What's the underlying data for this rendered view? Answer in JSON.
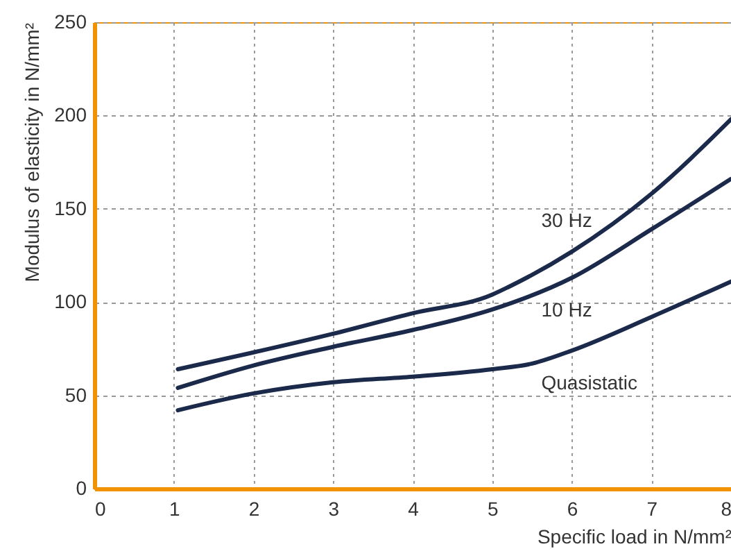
{
  "chart_data": {
    "type": "line",
    "xlabel": "Specific load in N/mm²",
    "ylabel": "Modulus of elasticity in N/mm²",
    "xlim": [
      0,
      8
    ],
    "xticks": [
      0,
      1,
      2,
      3,
      4,
      5,
      6,
      7,
      8
    ],
    "ylim": [
      0,
      250
    ],
    "yticks": [
      0,
      50,
      100,
      150,
      200,
      250
    ],
    "grid": true,
    "series": [
      {
        "name": "30 Hz",
        "color": "#1b2a4a",
        "x": [
          1.05,
          2,
          3,
          4,
          5,
          5.2,
          6,
          7,
          8
        ],
        "values": [
          64,
          73,
          83,
          94,
          104,
          108,
          127,
          158,
          198
        ]
      },
      {
        "name": "10 Hz",
        "color": "#1b2a4a",
        "x": [
          1.05,
          2,
          3,
          4,
          5,
          6,
          7,
          8
        ],
        "values": [
          54,
          66,
          76,
          85,
          96,
          113,
          139,
          166
        ]
      },
      {
        "name": "Quasistatic",
        "color": "#1b2a4a",
        "x": [
          1.05,
          2,
          3,
          4,
          5,
          5.5,
          6,
          7,
          8
        ],
        "values": [
          42,
          51,
          57,
          60,
          64,
          67,
          74,
          92,
          111
        ]
      }
    ]
  }
}
